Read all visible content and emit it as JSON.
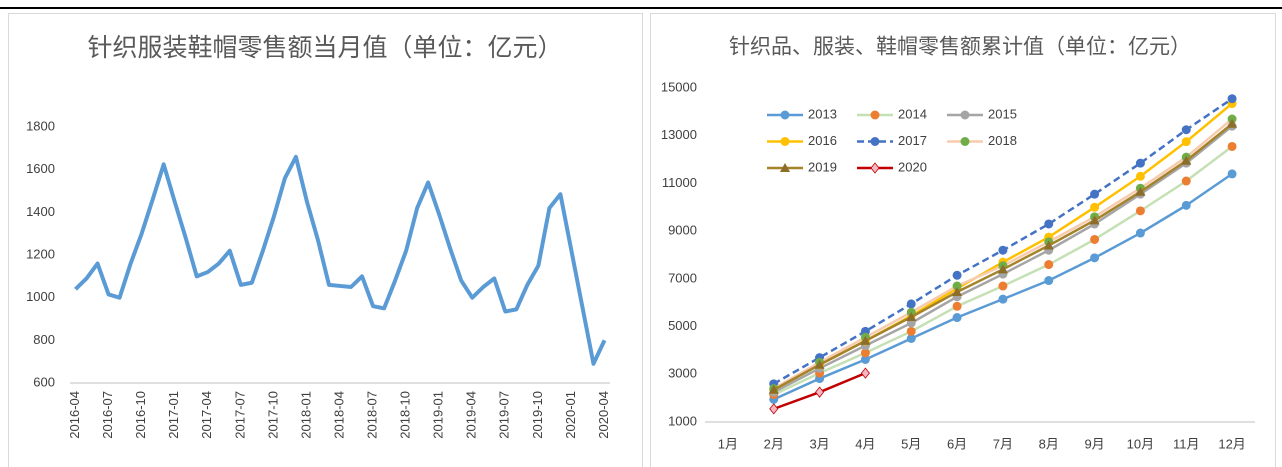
{
  "chart_data": [
    {
      "type": "line",
      "title": "针织服装鞋帽零售额当月值（单位：亿元）",
      "categories": [
        "2016-04",
        null,
        null,
        "2016-07",
        null,
        null,
        "2016-10",
        null,
        null,
        "2017-01",
        null,
        null,
        "2017-04",
        null,
        null,
        "2017-07",
        null,
        null,
        "2017-10",
        null,
        null,
        "2018-01",
        null,
        null,
        "2018-04",
        null,
        null,
        "2018-07",
        null,
        null,
        "2018-10",
        null,
        null,
        "2019-01",
        null,
        null,
        "2019-04",
        null,
        null,
        "2019-07",
        null,
        null,
        "2019-10",
        null,
        null,
        "2020-01",
        null,
        null,
        "2020-04"
      ],
      "series": [
        {
          "name": "针织服装鞋帽零售额当月值",
          "color": "#5b9bd5",
          "values": [
            1040,
            1090,
            1160,
            1015,
            1000,
            1160,
            1300,
            1460,
            1625,
            1450,
            1280,
            1100,
            1120,
            1160,
            1220,
            1060,
            1070,
            1220,
            1380,
            1560,
            1660,
            1450,
            1270,
            1060,
            1055,
            1050,
            1100,
            960,
            950,
            1080,
            1220,
            1420,
            1540,
            1390,
            1230,
            1080,
            1000,
            1050,
            1090,
            935,
            945,
            1060,
            1150,
            1420,
            1485,
            1220,
            955,
            690,
            800
          ]
        }
      ],
      "ylim": [
        600,
        1800
      ],
      "yticks": [
        600,
        800,
        1000,
        1200,
        1400,
        1600,
        1800
      ],
      "grid": false,
      "legend": false
    },
    {
      "type": "line",
      "title": "针织品、服装、鞋帽零售额累计值（单位：亿元）",
      "categories": [
        "1月",
        "2月",
        "3月",
        "4月",
        "5月",
        "6月",
        "7月",
        "8月",
        "9月",
        "10月",
        "11月",
        "12月"
      ],
      "series": [
        {
          "name": "2013",
          "color": "#5b9bd5",
          "marker": "circle",
          "marker_color": "#5b9bd5",
          "values": [
            null,
            1950,
            2820,
            3620,
            4500,
            5380,
            6150,
            6930,
            7880,
            8920,
            10080,
            11400
          ]
        },
        {
          "name": "2014",
          "color": "#c5e0b4",
          "marker": "circle",
          "marker_color": "#ed7d31",
          "values": [
            null,
            2150,
            3050,
            3900,
            4800,
            5850,
            6700,
            7600,
            8650,
            9850,
            11100,
            12550
          ]
        },
        {
          "name": "2015",
          "color": "#a5a5a5",
          "marker": "circle",
          "marker_color": "#a5a5a5",
          "values": [
            null,
            2250,
            3250,
            4200,
            5150,
            6250,
            7200,
            8200,
            9300,
            10550,
            11850,
            13400
          ]
        },
        {
          "name": "2016",
          "color": "#ffc000",
          "marker": "circle",
          "marker_color": "#ffc000",
          "values": [
            null,
            2350,
            3400,
            4400,
            5450,
            6600,
            7700,
            8750,
            10000,
            11300,
            12750,
            14350
          ]
        },
        {
          "name": "2017",
          "color": "#4472c4",
          "dash": true,
          "marker": "circle",
          "marker_color": "#4472c4",
          "values": [
            null,
            2600,
            3700,
            4800,
            5950,
            7150,
            8200,
            9300,
            10550,
            11850,
            13250,
            14550
          ]
        },
        {
          "name": "2018",
          "color": "#f8cbad",
          "marker": "circle",
          "marker_color": "#70ad47",
          "values": [
            null,
            2400,
            3500,
            4550,
            5600,
            6700,
            7550,
            8550,
            9600,
            10800,
            12100,
            13700
          ]
        },
        {
          "name": "2019",
          "color": "#a5832a",
          "marker": "triangle",
          "marker_color": "#8c6d2a",
          "values": [
            null,
            2350,
            3400,
            4400,
            5400,
            6450,
            7400,
            8400,
            9450,
            10650,
            11950,
            13500
          ]
        },
        {
          "name": "2020",
          "color": "#c00000",
          "marker": "diamond",
          "marker_color": "#f4b6c2",
          "values": [
            null,
            1550,
            2250,
            3050,
            null,
            null,
            null,
            null,
            null,
            null,
            null,
            null
          ]
        }
      ],
      "ylim": [
        1000,
        15000
      ],
      "yticks": [
        1000,
        3000,
        5000,
        7000,
        9000,
        11000,
        13000,
        15000
      ],
      "grid": false,
      "legend": "upper left"
    }
  ]
}
